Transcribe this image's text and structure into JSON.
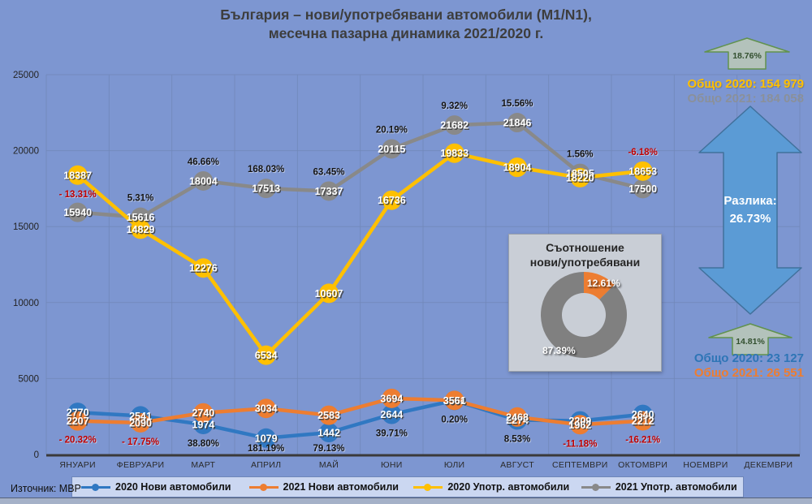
{
  "title": {
    "line1": "България – нови/употребявани автомобили (M1/N1),",
    "line2": "месечна пазарна динамика 2021/2020 г."
  },
  "source": "Източник: МВР",
  "colors": {
    "background": "#7D96D1",
    "gridline": "#7288BA",
    "axis": "#3A3A3A",
    "new_2020": "#3078C2",
    "new_2021": "#ED7D31",
    "used_2020": "#FFC000",
    "used_2021": "#898989",
    "negative_pct": "#C00000",
    "positive_pct": "#141414",
    "green_arrow_fill": "#B7C6B9",
    "green_arrow_stroke": "#61924E",
    "blue_arrow_fill": "#5B9BD5",
    "blue_arrow_stroke": "#41719C"
  },
  "chart_data": {
    "type": "line",
    "categories": [
      "ЯНУАРИ",
      "ФЕВРУАРИ",
      "МАРТ",
      "АПРИЛ",
      "МАЙ",
      "ЮНИ",
      "ЮЛИ",
      "АВГУСТ",
      "СЕПТЕМВРИ",
      "ОКТОМВРИ",
      "НОЕМВРИ",
      "ДЕКЕМВРИ"
    ],
    "y_ticks": [
      0,
      5000,
      10000,
      15000,
      20000,
      25000
    ],
    "ylim": [
      0,
      25000
    ],
    "grid": true,
    "legend_position": "bottom",
    "series": [
      {
        "name": "2020 Нови автомобили",
        "color": "#3078C2",
        "values": [
          2770,
          2541,
          1974,
          1079,
          1442,
          2644,
          3554,
          2274,
          2209,
          2640,
          null,
          null
        ]
      },
      {
        "name": "2021 Нови автомобили",
        "color": "#ED7D31",
        "values": [
          2207,
          2090,
          2740,
          3034,
          2583,
          3694,
          3561,
          2468,
          1962,
          2212,
          null,
          null
        ]
      },
      {
        "name": "2020 Употр. автомобили",
        "color": "#FFC000",
        "values": [
          18387,
          14829,
          12276,
          6534,
          10607,
          16736,
          19833,
          18904,
          18220,
          18653,
          null,
          null
        ]
      },
      {
        "name": "2021 Употр. автомобили",
        "color": "#898989",
        "values": [
          15940,
          15616,
          18004,
          17513,
          17337,
          20115,
          21682,
          21846,
          18505,
          17500,
          null,
          null
        ]
      }
    ],
    "pct_labels_used": [
      "- 13.31%",
      "5.31%",
      "46.66%",
      "168.03%",
      "63.45%",
      "20.19%",
      "9.32%",
      "15.56%",
      "1.56%",
      "-6.18%"
    ],
    "pct_labels_new": [
      "- 20.32%",
      "- 17.75%",
      "38.80%",
      "181.19%",
      "79.13%",
      "39.71%",
      "0.20%",
      "8.53%",
      "-11.18%",
      "-16.21%"
    ]
  },
  "summary_used": {
    "arrow_pct": "18.76%",
    "total_2020": "Общо 2020: 154 979",
    "total_2021": "Общо 2021: 184 058"
  },
  "diff_arrow": {
    "label": "Разлика:",
    "value": "26.73%"
  },
  "summary_new": {
    "arrow_pct": "14.81%",
    "total_2020": "Общо 2020: 23 127",
    "total_2021": "Общо 2021: 26 551"
  },
  "donut": {
    "type": "pie",
    "title_line1": "Съотношение",
    "title_line2": "нови/употребявани",
    "slices": [
      {
        "label": "12.61%",
        "value": 12.61,
        "color": "#ED7D31",
        "name": "нови"
      },
      {
        "label": "87.39%",
        "value": 87.39,
        "color": "#808080",
        "name": "употребявани"
      }
    ]
  },
  "legend": {
    "items": [
      {
        "label": "2020 Нови автомобили",
        "color": "#3078C2"
      },
      {
        "label": "2021 Нови автомобили",
        "color": "#ED7D31"
      },
      {
        "label": "2020 Употр. автомобили",
        "color": "#FFC000"
      },
      {
        "label": "2021 Употр. автомобили",
        "color": "#898989"
      }
    ]
  }
}
